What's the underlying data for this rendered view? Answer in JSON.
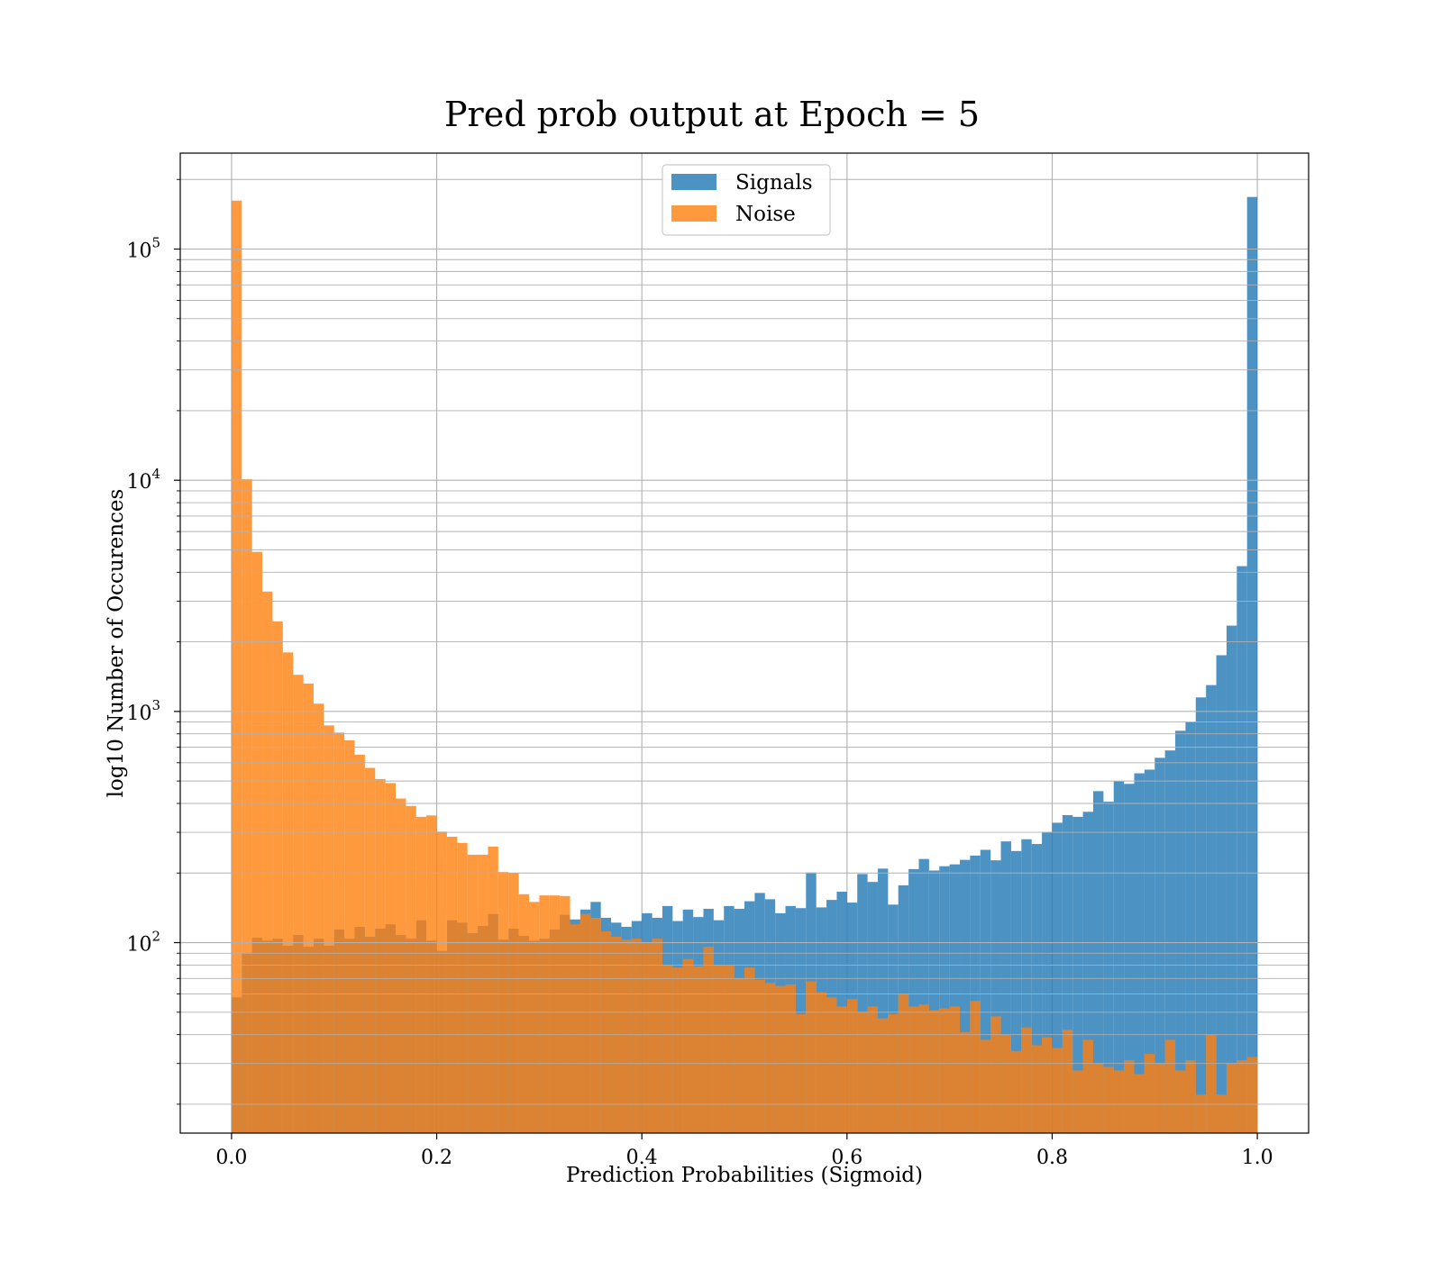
{
  "chart_data": {
    "type": "bar",
    "title": "Pred prob output at Epoch = 5",
    "xlabel": "Prediction Probabilities (Sigmoid)",
    "ylabel": "log10 Number of Occurences",
    "xlim": [
      -0.05,
      1.05
    ],
    "ylim": [
      15,
      260000
    ],
    "yscale": "log",
    "grid": true,
    "legend_position": "top-center",
    "xticks": [
      "0.0",
      "0.2",
      "0.4",
      "0.6",
      "0.8",
      "1.0"
    ],
    "xtick_values": [
      0.0,
      0.2,
      0.4,
      0.6,
      0.8,
      1.0
    ],
    "yticks": [
      {
        "base": "10",
        "exp": "2",
        "value": 100
      },
      {
        "base": "10",
        "exp": "3",
        "value": 1000
      },
      {
        "base": "10",
        "exp": "4",
        "value": 10000
      },
      {
        "base": "10",
        "exp": "5",
        "value": 100000
      }
    ],
    "bin_range": [
      0.0,
      1.0
    ],
    "bins": 100,
    "series": [
      {
        "name": "Signals",
        "color": "#1f77b4",
        "alpha": 0.8,
        "values": [
          58,
          90,
          105,
          102,
          104,
          97,
          108,
          96,
          104,
          97,
          114,
          104,
          117,
          106,
          115,
          120,
          108,
          104,
          125,
          102,
          92,
          125,
          122,
          110,
          118,
          133,
          103,
          115,
          107,
          102,
          104,
          114,
          132,
          126,
          139,
          150,
          128,
          122,
          117,
          124,
          134,
          128,
          144,
          124,
          139,
          129,
          140,
          125,
          144,
          140,
          151,
          164,
          154,
          134,
          144,
          141,
          201,
          142,
          153,
          166,
          149,
          198,
          183,
          209,
          146,
          177,
          208,
          230,
          205,
          214,
          218,
          228,
          238,
          252,
          227,
          274,
          249,
          280,
          267,
          301,
          330,
          356,
          350,
          368,
          452,
          407,
          498,
          486,
          540,
          560,
          630,
          678,
          825,
          900,
          1150,
          1300,
          1750,
          2350,
          4250,
          168000
        ]
      },
      {
        "name": "Noise",
        "color": "#ff7f0e",
        "alpha": 0.8,
        "values": [
          162000,
          10100,
          4900,
          3300,
          2450,
          1800,
          1440,
          1320,
          1080,
          870,
          810,
          750,
          650,
          570,
          510,
          490,
          420,
          390,
          350,
          355,
          302,
          287,
          270,
          240,
          240,
          260,
          202,
          200,
          162,
          150,
          160,
          160,
          159,
          120,
          133,
          128,
          112,
          106,
          103,
          104,
          100,
          104,
          80,
          78,
          85,
          79,
          96,
          80,
          80,
          70,
          78,
          69,
          67,
          65,
          66,
          49,
          68,
          61,
          58,
          53,
          57,
          50,
          53,
          47,
          49,
          60,
          53,
          54,
          51,
          52,
          53,
          41,
          56,
          38,
          48,
          40,
          34,
          43,
          36,
          39,
          35,
          42,
          28,
          38,
          30,
          29,
          28,
          31,
          27,
          33,
          30,
          38,
          28,
          31,
          22,
          40,
          22,
          30,
          31,
          32
        ]
      }
    ]
  }
}
